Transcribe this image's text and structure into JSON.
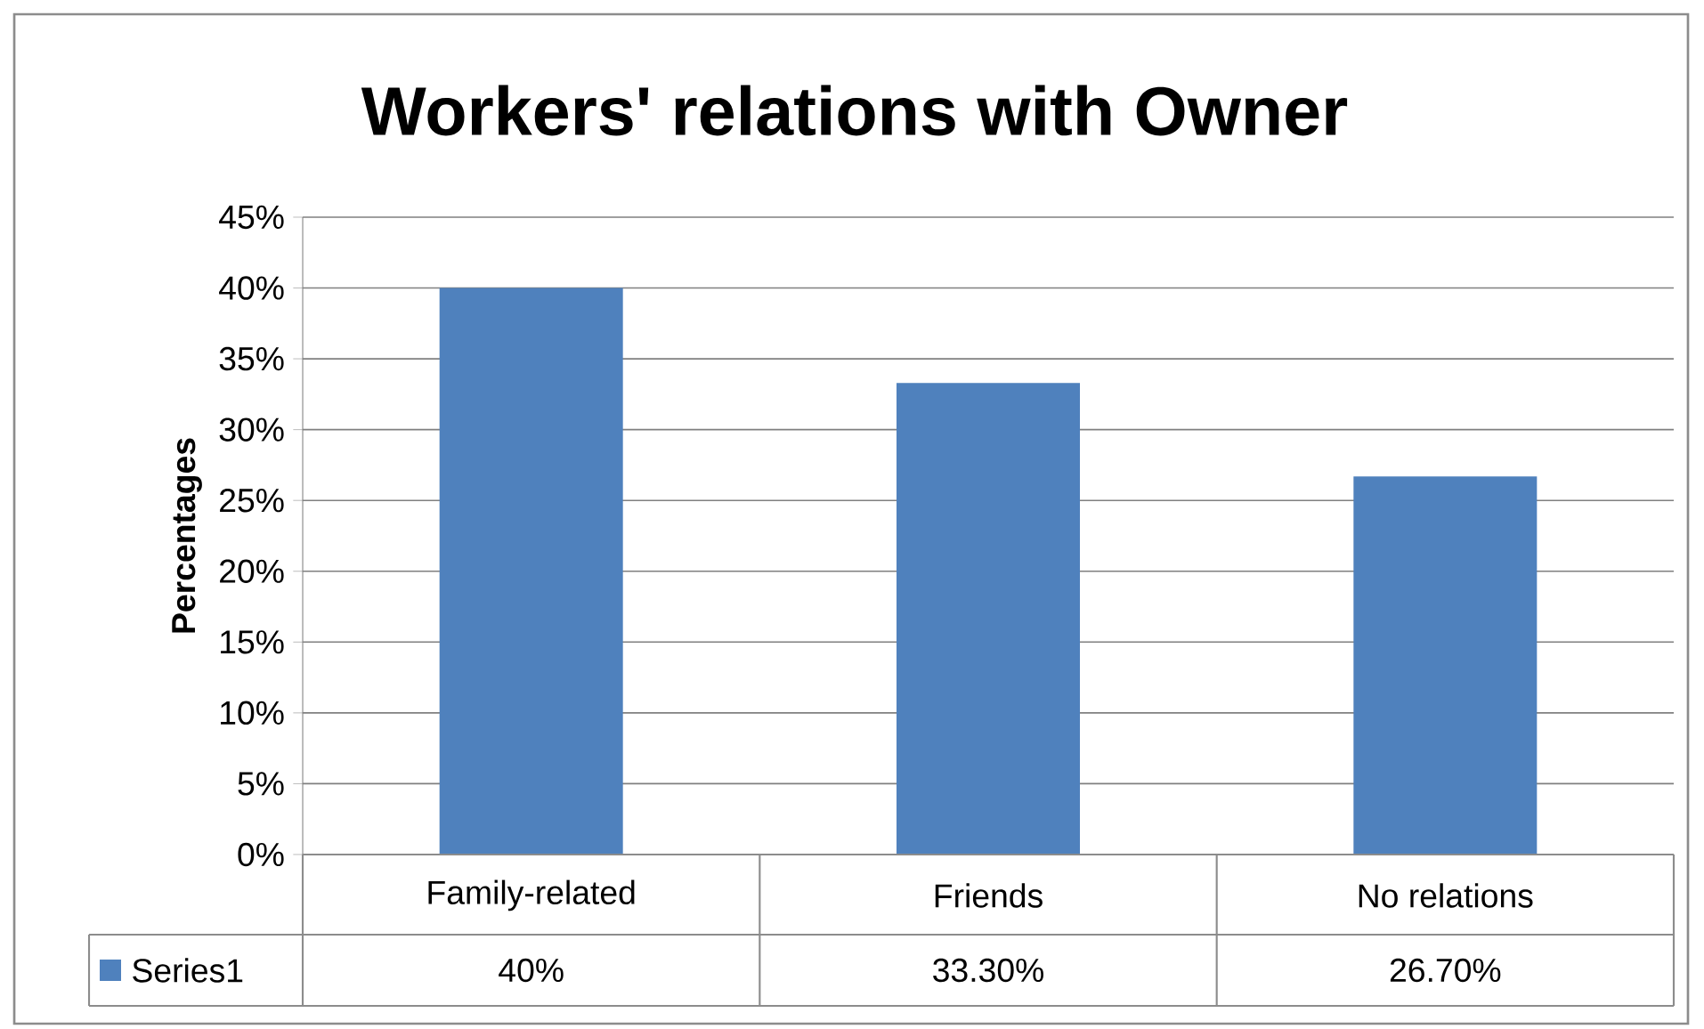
{
  "chart_data": {
    "type": "bar",
    "title": "Workers' relations with Owner",
    "ylabel": "Percentages",
    "categories": [
      "Family-related",
      "Friends",
      "No relations"
    ],
    "series": [
      {
        "name": "Series1",
        "color": "#4f81bd",
        "values": [
          40,
          33.3,
          26.7
        ],
        "value_labels": [
          "40%",
          "33.30%",
          "26.70%"
        ]
      }
    ],
    "ylim": [
      0,
      45
    ],
    "yticks": [
      {
        "value": 0,
        "label": "0%"
      },
      {
        "value": 5,
        "label": "5%"
      },
      {
        "value": 10,
        "label": "10%"
      },
      {
        "value": 15,
        "label": "15%"
      },
      {
        "value": 20,
        "label": "20%"
      },
      {
        "value": 25,
        "label": "25%"
      },
      {
        "value": 30,
        "label": "30%"
      },
      {
        "value": 35,
        "label": "35%"
      },
      {
        "value": 40,
        "label": "40%"
      },
      {
        "value": 45,
        "label": "45%"
      }
    ],
    "grid": "y",
    "legend": "bottom"
  }
}
